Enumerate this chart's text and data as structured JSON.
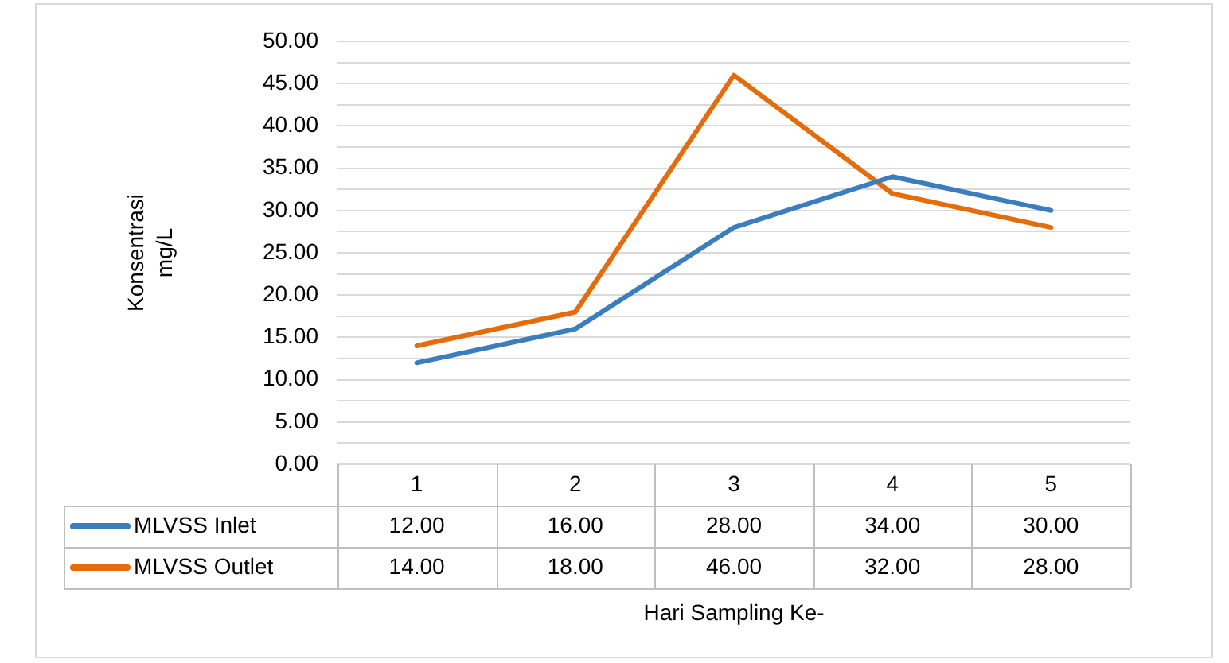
{
  "chart_data": {
    "type": "line",
    "categories": [
      "1",
      "2",
      "3",
      "4",
      "5"
    ],
    "xlabel": "Hari Sampling Ke-",
    "ylabel": "Konsentrasi\nmg/L",
    "series": [
      {
        "name": "MLVSS Inlet",
        "color": "#3c7dc0",
        "values": [
          12,
          16,
          28,
          34,
          30
        ],
        "value_labels": [
          "12.00",
          "16.00",
          "28.00",
          "34.00",
          "30.00"
        ]
      },
      {
        "name": "MLVSS Outlet",
        "color": "#e46c0a",
        "values": [
          14,
          18,
          46,
          32,
          28
        ],
        "value_labels": [
          "14.00",
          "18.00",
          "46.00",
          "32.00",
          "28.00"
        ]
      }
    ],
    "ylim": [
      0,
      50
    ],
    "yticks": [
      {
        "value": 0,
        "label": "0.00"
      },
      {
        "value": 2.5,
        "label": null
      },
      {
        "value": 5,
        "label": "5.00"
      },
      {
        "value": 7.5,
        "label": null
      },
      {
        "value": 10,
        "label": "10.00"
      },
      {
        "value": 12.5,
        "label": null
      },
      {
        "value": 15,
        "label": "15.00"
      },
      {
        "value": 17.5,
        "label": null
      },
      {
        "value": 20,
        "label": "20.00"
      },
      {
        "value": 22.5,
        "label": null
      },
      {
        "value": 25,
        "label": "25.00"
      },
      {
        "value": 27.5,
        "label": null
      },
      {
        "value": 30,
        "label": "30.00"
      },
      {
        "value": 32.5,
        "label": null
      },
      {
        "value": 35,
        "label": "35.00"
      },
      {
        "value": 37.5,
        "label": null
      },
      {
        "value": 40,
        "label": "40.00"
      },
      {
        "value": 42.5,
        "label": null
      },
      {
        "value": 45,
        "label": "45.00"
      },
      {
        "value": 47.5,
        "label": null
      },
      {
        "value": 50,
        "label": "50.00"
      }
    ],
    "grid": "y",
    "legend": "bottom",
    "marker": "none",
    "line_style": "solid"
  }
}
